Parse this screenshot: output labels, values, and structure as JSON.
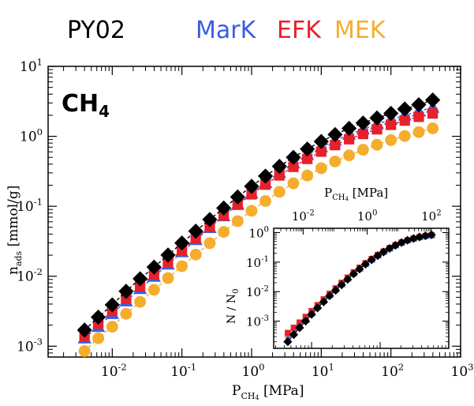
{
  "chart_data": [
    {
      "type": "scatter",
      "panel": "main",
      "legend": [
        "PY02",
        "MarK",
        "EFK",
        "MEK"
      ],
      "legend_placement": "top",
      "annotation": {
        "base": "CH",
        "sub": "4"
      },
      "xlabel": {
        "base": "P",
        "sub": "CH",
        "sub2": "4",
        "rest": " [MPa]"
      },
      "ylabel": {
        "base": "n",
        "sub": "ads",
        "rest": " [mmol/g]"
      },
      "x_scale": "log",
      "y_scale": "log",
      "xlim": [
        0.0012,
        1000
      ],
      "ylim": [
        0.0007,
        10
      ],
      "x_ticks": [
        {
          "base": "10",
          "exp": "-2",
          "value": 0.01
        },
        {
          "base": "10",
          "exp": "-1",
          "value": 0.1
        },
        {
          "base": "10",
          "exp": "0",
          "value": 1
        },
        {
          "base": "10",
          "exp": "1",
          "value": 10
        },
        {
          "base": "10",
          "exp": "2",
          "value": 100
        },
        {
          "base": "10",
          "exp": "3",
          "value": 1000
        }
      ],
      "y_ticks": [
        {
          "base": "10",
          "exp": "-3",
          "value": 0.001
        },
        {
          "base": "10",
          "exp": "-2",
          "value": 0.01
        },
        {
          "base": "10",
          "exp": "-1",
          "value": 0.1
        },
        {
          "base": "10",
          "exp": "0",
          "value": 1
        },
        {
          "base": "10",
          "exp": "1",
          "value": 10
        }
      ],
      "x": [
        0.004,
        0.0063,
        0.01,
        0.0158,
        0.0251,
        0.0398,
        0.0631,
        0.1,
        0.158,
        0.251,
        0.398,
        0.631,
        1,
        1.58,
        2.51,
        3.98,
        6.31,
        10,
        15.8,
        25.1,
        39.8,
        63.1,
        100,
        158,
        251,
        398
      ],
      "series": [
        {
          "name": "PY02",
          "marker": "diamond",
          "color": "#000000",
          "values": [
            0.0017,
            0.0026,
            0.0039,
            0.0061,
            0.0092,
            0.0135,
            0.0201,
            0.0299,
            0.0441,
            0.0647,
            0.0944,
            0.136,
            0.193,
            0.27,
            0.372,
            0.5,
            0.658,
            0.844,
            1.06,
            1.3,
            1.55,
            1.83,
            2.13,
            2.46,
            2.83,
            3.3
          ]
        },
        {
          "name": "MarK",
          "marker": "triangle",
          "color": "#3c5ce0",
          "values": [
            0.0013,
            0.0019,
            0.0029,
            0.0044,
            0.0066,
            0.0099,
            0.0148,
            0.0222,
            0.0331,
            0.0492,
            0.0724,
            0.106,
            0.153,
            0.217,
            0.303,
            0.412,
            0.545,
            0.7,
            0.874,
            1.06,
            1.26,
            1.49,
            1.73,
            2.0,
            2.28,
            2.58
          ]
        },
        {
          "name": "EFK",
          "marker": "square",
          "color": "#e8202a",
          "values": [
            0.0014,
            0.0021,
            0.0032,
            0.0048,
            0.0072,
            0.0107,
            0.016,
            0.0237,
            0.0349,
            0.051,
            0.0737,
            0.105,
            0.148,
            0.204,
            0.276,
            0.366,
            0.476,
            0.604,
            0.749,
            0.909,
            1.08,
            1.26,
            1.46,
            1.68,
            1.9,
            2.12
          ]
        },
        {
          "name": "MEK",
          "marker": "circle",
          "color": "#f5ad2e",
          "values": [
            0.00085,
            0.0013,
            0.0019,
            0.0029,
            0.0043,
            0.0064,
            0.0094,
            0.0139,
            0.0204,
            0.0297,
            0.043,
            0.0613,
            0.0862,
            0.119,
            0.161,
            0.213,
            0.275,
            0.35,
            0.437,
            0.534,
            0.642,
            0.758,
            0.882,
            1.01,
            1.15,
            1.3
          ]
        }
      ]
    },
    {
      "type": "scatter",
      "panel": "inset",
      "xlabel": "",
      "ylabel": {
        "text": "N / N",
        "sub": "0"
      },
      "top_xlabel": {
        "base": "P",
        "sub": "CH",
        "sub2": "4",
        "rest": " [MPa]"
      },
      "x_scale": "log",
      "y_scale": "log",
      "xlim": [
        2.8,
        1000
      ],
      "ylim": [
        0.00012,
        1.4
      ],
      "top_xlim": [
        0.0012,
        350
      ],
      "x_ticks": [
        {
          "base": "10",
          "exp": "1",
          "value": 10
        },
        {
          "base": "10",
          "exp": "2",
          "value": 100
        },
        {
          "base": "10",
          "exp": "3",
          "value": 1000
        }
      ],
      "top_x_ticks": [
        {
          "base": "10",
          "exp": "-2",
          "value": 0.01
        },
        {
          "base": "10",
          "exp": "0",
          "value": 1
        },
        {
          "base": "10",
          "exp": "2",
          "value": 100
        }
      ],
      "y_ticks": [
        {
          "base": "10",
          "exp": "-3",
          "value": 0.001
        },
        {
          "base": "10",
          "exp": "-2",
          "value": 0.01
        },
        {
          "base": "10",
          "exp": "-1",
          "value": 0.1
        },
        {
          "base": "10",
          "exp": "0",
          "value": 1
        }
      ],
      "x": [
        4.5,
        5.5,
        6.7,
        8.2,
        10,
        12.2,
        15,
        18.3,
        22.4,
        27.4,
        33.5,
        41,
        50,
        61,
        75,
        92,
        112,
        137,
        167,
        205,
        250,
        306,
        374,
        457,
        560
      ],
      "series": [
        {
          "name": "PY02",
          "marker": "diamond",
          "color": "#000000",
          "values": [
            0.0002,
            0.00035,
            0.0006,
            0.001,
            0.0017,
            0.0028,
            0.0045,
            0.0072,
            0.011,
            0.017,
            0.026,
            0.04,
            0.058,
            0.085,
            0.12,
            0.165,
            0.22,
            0.29,
            0.37,
            0.46,
            0.55,
            0.63,
            0.71,
            0.78,
            0.84
          ]
        },
        {
          "name": "MarK",
          "marker": "triangle",
          "color": "#3c5ce0",
          "values": [
            0.00025,
            0.0004,
            0.00068,
            0.0011,
            0.0019,
            0.0031,
            0.005,
            0.0078,
            0.012,
            0.018,
            0.028,
            0.042,
            0.061,
            0.088,
            0.124,
            0.17,
            0.225,
            0.295,
            0.375,
            0.46,
            0.55,
            0.63,
            0.71,
            0.77,
            0.83
          ]
        },
        {
          "name": "EFK",
          "marker": "square",
          "color": "#e8202a",
          "values": [
            0.0004,
            0.0006,
            0.0009,
            0.0014,
            0.0022,
            0.0035,
            0.0055,
            0.0085,
            0.013,
            0.02,
            0.03,
            0.045,
            0.065,
            0.092,
            0.128,
            0.175,
            0.23,
            0.3,
            0.38,
            0.465,
            0.55,
            0.63,
            0.7,
            0.77,
            0.82
          ]
        },
        {
          "name": "MEK",
          "marker": "circle",
          "color": "#f5ad2e",
          "values": [
            0.00032,
            0.0005,
            0.0008,
            0.0012,
            0.002,
            0.0032,
            0.005,
            0.008,
            0.012,
            0.019,
            0.029,
            0.043,
            0.063,
            0.09,
            0.126,
            0.172,
            0.228,
            0.297,
            0.377,
            0.462,
            0.55,
            0.63,
            0.7,
            0.77,
            0.83
          ]
        }
      ]
    }
  ]
}
